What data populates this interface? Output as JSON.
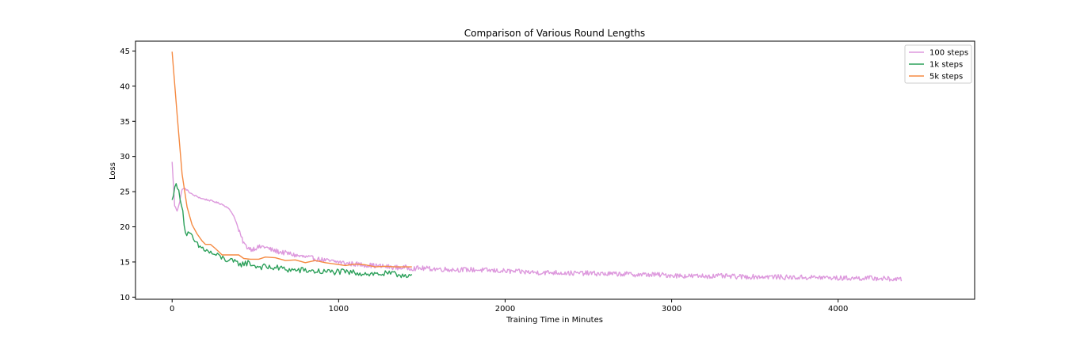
{
  "chart_data": {
    "type": "line",
    "title": "Comparison of Various Round Lengths",
    "xlabel": "Training Time in Minutes",
    "ylabel": "Loss",
    "xlim": [
      -220,
      4820
    ],
    "ylim": [
      9.7,
      46.4
    ],
    "xticks": [
      0,
      1000,
      2000,
      3000,
      4000
    ],
    "yticks": [
      10,
      15,
      20,
      25,
      30,
      35,
      40,
      45
    ],
    "grid": false,
    "legend_position": "top-right",
    "series": [
      {
        "name": "100 steps",
        "color": "#dd99dd",
        "x": [
          0,
          15,
          30,
          45,
          60,
          80,
          100,
          120,
          150,
          180,
          200,
          250,
          300,
          330,
          360,
          380,
          400,
          420,
          440,
          460,
          480,
          500,
          550,
          600,
          650,
          700,
          750,
          800,
          850,
          900,
          950,
          1000,
          1050,
          1100,
          1150,
          1200,
          1250,
          1300,
          1350,
          1400,
          1450,
          1500,
          1600,
          1700,
          1800,
          1900,
          2000,
          2100,
          2200,
          2300,
          2400,
          2500,
          2600,
          2700,
          2800,
          2900,
          3000,
          3100,
          3200,
          3300,
          3400,
          3500,
          3600,
          3700,
          3800,
          3900,
          4000,
          4100,
          4200,
          4300,
          4380
        ],
        "y": [
          29.2,
          23.0,
          22.3,
          23.5,
          25.4,
          25.4,
          25.0,
          24.6,
          24.3,
          24.0,
          23.9,
          23.6,
          23.2,
          22.8,
          22.0,
          21.0,
          19.5,
          18.2,
          17.3,
          17.0,
          16.8,
          17.0,
          17.2,
          16.7,
          16.4,
          16.2,
          15.9,
          15.7,
          15.5,
          15.3,
          15.1,
          15.0,
          14.8,
          14.7,
          14.6,
          14.5,
          14.4,
          14.3,
          14.2,
          14.2,
          14.1,
          14.1,
          14.0,
          13.9,
          13.9,
          13.8,
          13.7,
          13.6,
          13.5,
          13.5,
          13.4,
          13.4,
          13.3,
          13.3,
          13.2,
          13.2,
          13.1,
          13.0,
          13.0,
          13.0,
          12.9,
          12.9,
          12.9,
          12.8,
          12.8,
          12.8,
          12.7,
          12.7,
          12.7,
          12.6,
          12.5
        ],
        "noise": 0.35
      },
      {
        "name": "1k steps",
        "color": "#2ca05a",
        "x": [
          0,
          15,
          30,
          45,
          60,
          80,
          100,
          120,
          140,
          160,
          180,
          200,
          230,
          260,
          300,
          340,
          380,
          420,
          460,
          500,
          550,
          600,
          650,
          700,
          750,
          800,
          850,
          900,
          950,
          1000,
          1050,
          1100,
          1150,
          1200,
          1250,
          1300,
          1350,
          1400,
          1440
        ],
        "y": [
          23.6,
          26.0,
          25.6,
          24.6,
          23.0,
          19.0,
          19.0,
          18.5,
          17.7,
          17.2,
          17.0,
          16.7,
          16.3,
          16.0,
          15.6,
          15.2,
          14.9,
          14.7,
          14.9,
          14.4,
          14.3,
          14.2,
          14.1,
          13.9,
          13.8,
          13.8,
          13.7,
          13.6,
          13.6,
          13.6,
          13.5,
          13.5,
          13.4,
          13.3,
          13.3,
          13.3,
          13.2,
          13.2,
          13.1
        ],
        "noise": 0.45
      },
      {
        "name": "5k steps",
        "color": "#f58a42",
        "x": [
          0,
          30,
          60,
          90,
          120,
          150,
          180,
          200,
          230,
          260,
          300,
          360,
          400,
          430,
          470,
          520,
          560,
          620,
          680,
          740,
          800,
          860,
          920,
          980,
          1040,
          1100,
          1160,
          1220,
          1280,
          1340,
          1400,
          1440
        ],
        "y": [
          44.9,
          36.0,
          27.5,
          22.8,
          20.3,
          19.0,
          18.0,
          17.5,
          17.5,
          16.9,
          16.0,
          16.0,
          16.0,
          15.5,
          15.4,
          15.4,
          15.7,
          15.6,
          15.2,
          15.3,
          14.9,
          15.2,
          14.9,
          14.7,
          14.5,
          14.7,
          14.6,
          14.3,
          14.4,
          14.3,
          14.3,
          14.3
        ],
        "noise": 0
      }
    ]
  }
}
